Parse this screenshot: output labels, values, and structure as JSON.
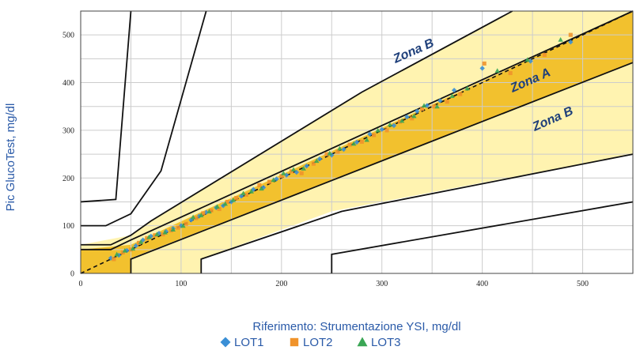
{
  "chart_data": {
    "type": "scatter",
    "title": "",
    "xlabel": "Riferimento: Strumentazione YSI, mg/dl",
    "ylabel": "Pic GlucoTest, mg/dl",
    "xlim": [
      0,
      550
    ],
    "ylim": [
      0,
      550
    ],
    "x_ticks": [
      0,
      100,
      200,
      300,
      400,
      500
    ],
    "y_ticks": [
      0,
      100,
      200,
      300,
      400,
      500
    ],
    "grid": true,
    "legend_position": "bottom-center",
    "zone_labels": [
      "Zona B",
      "Zona A",
      "Zona B"
    ],
    "colors": {
      "zone_a": "#f2c12e",
      "zone_b": "#fff3b0",
      "grid": "#cccccc",
      "boundary": "#111111",
      "lot1": "#3a8fd6",
      "lot2": "#f0932b",
      "lot3": "#3aa655"
    },
    "series": [
      {
        "name": "LOT1",
        "marker": "diamond",
        "x": [
          30,
          38,
          46,
          55,
          62,
          70,
          78,
          85,
          92,
          100,
          110,
          118,
          125,
          135,
          142,
          150,
          160,
          172,
          182,
          195,
          205,
          215,
          225,
          238,
          250,
          262,
          275,
          288,
          300,
          312,
          325,
          335,
          345,
          358,
          372,
          400,
          448,
          488
        ],
        "y": [
          32,
          38,
          48,
          58,
          70,
          78,
          84,
          88,
          94,
          100,
          112,
          120,
          128,
          138,
          142,
          150,
          162,
          176,
          180,
          198,
          206,
          212,
          225,
          240,
          248,
          260,
          275,
          292,
          302,
          310,
          328,
          340,
          352,
          362,
          384,
          430,
          445,
          485
        ]
      },
      {
        "name": "LOT2",
        "marker": "square",
        "x": [
          33,
          42,
          50,
          58,
          66,
          74,
          82,
          90,
          97,
          105,
          115,
          122,
          130,
          138,
          146,
          155,
          165,
          178,
          188,
          200,
          210,
          220,
          232,
          245,
          256,
          268,
          280,
          292,
          305,
          318,
          330,
          340,
          352,
          365,
          378,
          402,
          428,
          462,
          488
        ],
        "y": [
          30,
          44,
          50,
          64,
          74,
          80,
          82,
          90,
          96,
          104,
          116,
          126,
          132,
          135,
          150,
          158,
          165,
          185,
          192,
          204,
          214,
          210,
          230,
          250,
          255,
          270,
          276,
          290,
          300,
          318,
          325,
          345,
          350,
          360,
          376,
          440,
          420,
          458,
          500
        ]
      },
      {
        "name": "LOT3",
        "marker": "triangle",
        "x": [
          36,
          44,
          52,
          60,
          68,
          76,
          84,
          92,
          102,
          112,
          120,
          128,
          136,
          144,
          152,
          162,
          170,
          180,
          192,
          202,
          212,
          222,
          235,
          248,
          258,
          272,
          285,
          296,
          308,
          320,
          332,
          342,
          355,
          370,
          385,
          415,
          445,
          478
        ],
        "y": [
          40,
          48,
          52,
          66,
          76,
          82,
          86,
          92,
          100,
          118,
          122,
          130,
          140,
          146,
          154,
          168,
          172,
          178,
          196,
          210,
          218,
          220,
          236,
          252,
          262,
          272,
          280,
          300,
          312,
          320,
          330,
          352,
          350,
          372,
          388,
          425,
          448,
          490
        ]
      }
    ]
  }
}
